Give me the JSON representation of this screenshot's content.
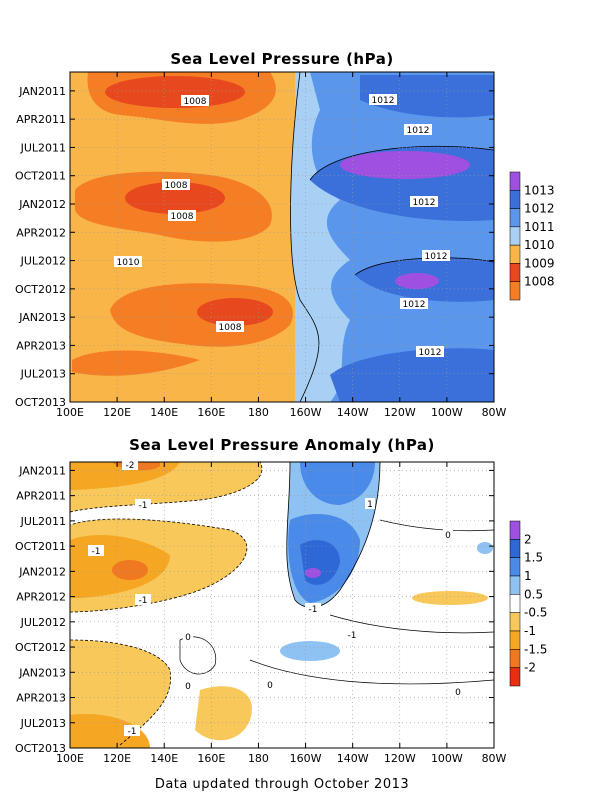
{
  "footer": "Data updated through October 2013",
  "chart_data": [
    {
      "type": "heatmap",
      "title": "Sea Level Pressure (hPa)",
      "x_tick_labels": [
        "100E",
        "120E",
        "140E",
        "160E",
        "180",
        "160W",
        "140W",
        "120W",
        "100W",
        "80W"
      ],
      "x_ticks_deg_east": [
        100,
        120,
        140,
        160,
        180,
        200,
        220,
        240,
        260,
        280
      ],
      "xlim_deg_east": [
        100,
        280
      ],
      "y_tick_labels": [
        "JAN2011",
        "APR2011",
        "JUL2011",
        "OCT2011",
        "JAN2012",
        "APR2012",
        "JUL2012",
        "OCT2012",
        "JAN2013",
        "APR2013",
        "JUL2013",
        "OCT2013"
      ],
      "y_ticks_month_index": [
        0,
        3,
        6,
        9,
        12,
        15,
        18,
        21,
        24,
        27,
        30,
        33
      ],
      "ylim_month_index": [
        -2,
        33
      ],
      "grid": true,
      "colorbar": {
        "levels": [
          "1013",
          "1012",
          "1011",
          "1010",
          "1009",
          "1008"
        ],
        "colors": [
          "#a050e0",
          "#3b6fd9",
          "#5a97ec",
          "#a8d0f5",
          "#f9b548",
          "#e8481e",
          "#f57d24"
        ]
      },
      "contour_labels": [
        "1008",
        "1012",
        "1012",
        "1008",
        "1008",
        "1012",
        "1010",
        "1012",
        "1012",
        "1008",
        "1012"
      ]
    },
    {
      "type": "heatmap",
      "title": "Sea Level Pressure Anomaly (hPa)",
      "x_tick_labels": [
        "100E",
        "120E",
        "140E",
        "160E",
        "180",
        "160W",
        "140W",
        "120W",
        "100W",
        "80W"
      ],
      "x_ticks_deg_east": [
        100,
        120,
        140,
        160,
        180,
        200,
        220,
        240,
        260,
        280
      ],
      "xlim_deg_east": [
        100,
        280
      ],
      "y_tick_labels": [
        "JAN2011",
        "APR2011",
        "JUL2011",
        "OCT2011",
        "JAN2012",
        "APR2012",
        "JUL2012",
        "OCT2012",
        "JAN2013",
        "APR2013",
        "JUL2013",
        "OCT2013"
      ],
      "y_ticks_month_index": [
        0,
        3,
        6,
        9,
        12,
        15,
        18,
        21,
        24,
        27,
        30,
        33
      ],
      "ylim_month_index": [
        -1,
        33
      ],
      "grid": true,
      "colorbar": {
        "levels": [
          "2",
          "1.5",
          "1",
          "0.5",
          "-0.5",
          "-1",
          "-1.5",
          "-2"
        ],
        "colors": [
          "#a050e0",
          "#2e68d6",
          "#4a8ae8",
          "#8ec2f2",
          "#ffffff",
          "#f9c85a",
          "#f5a623",
          "#f07820",
          "#e82d10"
        ]
      },
      "contour_labels": [
        "-2",
        "-1",
        "-1",
        "1",
        "0",
        "-1",
        "-1",
        "-1",
        "0",
        "0",
        "0",
        "0",
        "-1"
      ]
    }
  ]
}
